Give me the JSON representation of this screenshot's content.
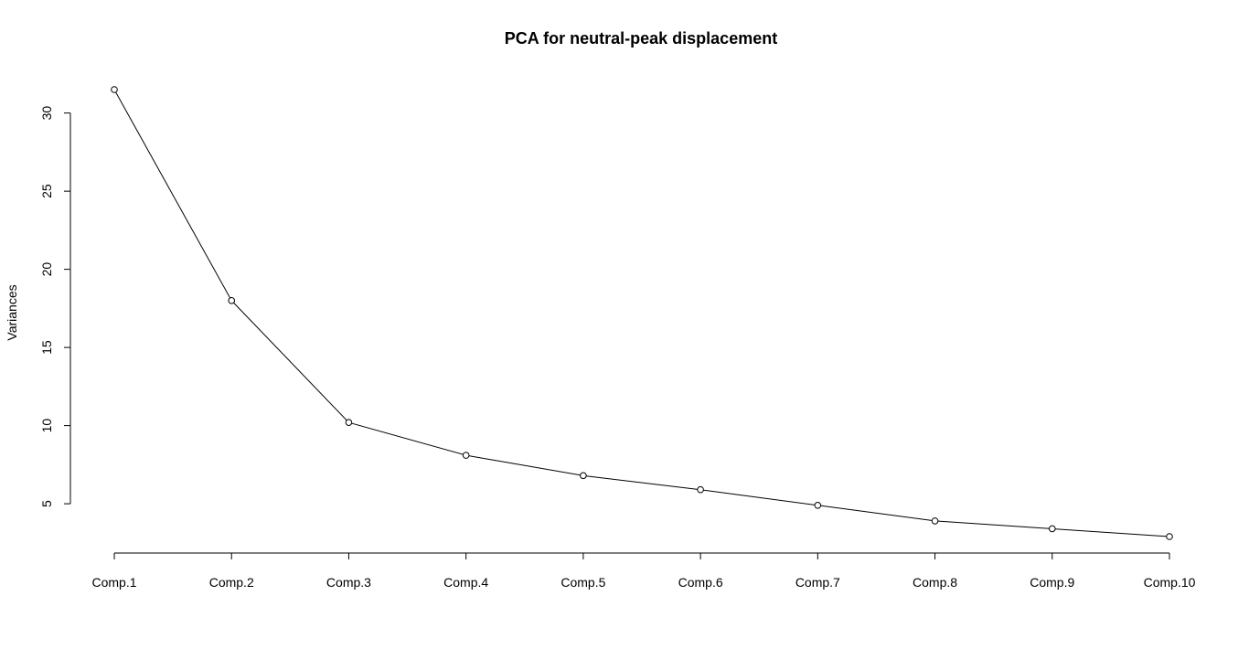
{
  "chart_data": {
    "type": "line",
    "title": "PCA for neutral-peak displacement",
    "xlabel": "",
    "ylabel": "Variances",
    "categories": [
      "Comp.1",
      "Comp.2",
      "Comp.3",
      "Comp.4",
      "Comp.5",
      "Comp.6",
      "Comp.7",
      "Comp.8",
      "Comp.9",
      "Comp.10"
    ],
    "values": [
      31.5,
      18.0,
      10.2,
      8.1,
      6.8,
      5.9,
      4.9,
      3.9,
      3.4,
      2.9
    ],
    "yticks": [
      5,
      10,
      15,
      20,
      25,
      30
    ],
    "ylim": [
      2.9,
      31.5
    ],
    "markers": "open-circle",
    "grid": false,
    "legend": "none"
  }
}
